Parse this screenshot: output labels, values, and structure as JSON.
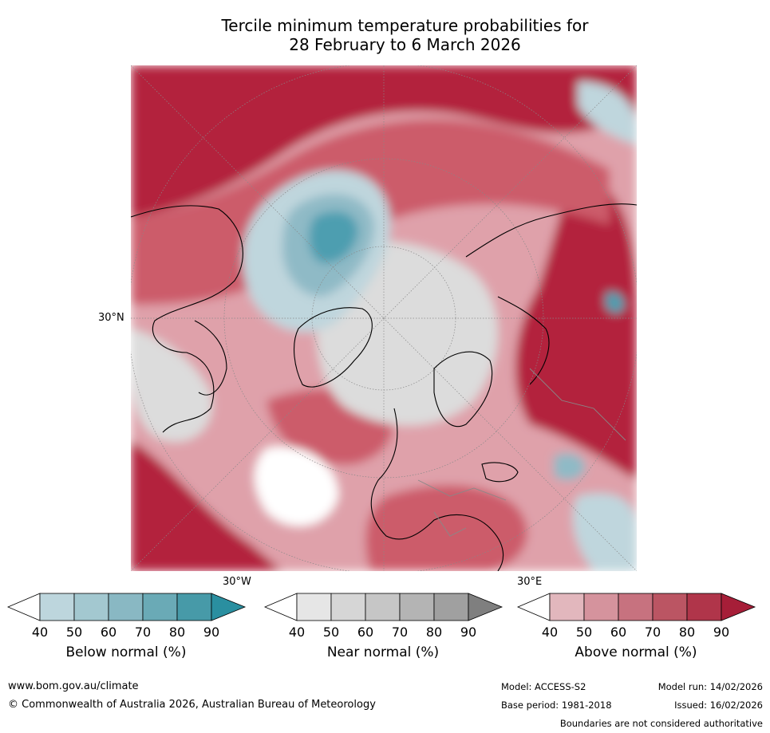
{
  "title": {
    "line1": "Tercile minimum temperature probabilities for",
    "line2": "28 February to 6 March 2026"
  },
  "map": {
    "lat_label": "30°N",
    "lon_labels": {
      "west": "30°W",
      "east": "30°E"
    },
    "colors": {
      "above_high": "#b3223d",
      "above_mid": "#cc5b6b",
      "above_low": "#dfa1aa",
      "below_high": "#4d9eb0",
      "below_mid": "#8fbac6",
      "below_low": "#bfd6dd",
      "near": "#dcdcdc",
      "land_line": "#000000",
      "border_line": "#888888"
    }
  },
  "colorbars": [
    {
      "label": "Below normal (%)",
      "ticks": [
        "40",
        "50",
        "60",
        "70",
        "80",
        "90"
      ],
      "colors": [
        "#bdd6dd",
        "#a3c8d0",
        "#89b8c3",
        "#6aaab6",
        "#479aa8",
        "#2a8fa0"
      ]
    },
    {
      "label": "Near normal (%)",
      "ticks": [
        "40",
        "50",
        "60",
        "70",
        "80",
        "90"
      ],
      "colors": [
        "#e6e6e6",
        "#d6d6d6",
        "#c6c6c6",
        "#b4b4b4",
        "#a0a0a0",
        "#7f7f7f"
      ]
    },
    {
      "label": "Above normal (%)",
      "ticks": [
        "40",
        "50",
        "60",
        "70",
        "80",
        "90"
      ],
      "colors": [
        "#e2b7bd",
        "#d5939d",
        "#c7727f",
        "#bb5563",
        "#b0354a",
        "#a61e38"
      ]
    }
  ],
  "footer": {
    "url": "www.bom.gov.au/climate",
    "copyright": "© Commonwealth of Australia 2026, Australian Bureau of Meteorology",
    "model": "Model: ACCESS-S2",
    "base_period": "Base period: 1981-2018",
    "model_run": "Model run: 14/02/2026",
    "issued": "Issued: 16/02/2026",
    "disclaimer": "Boundaries are not considered authoritative"
  }
}
